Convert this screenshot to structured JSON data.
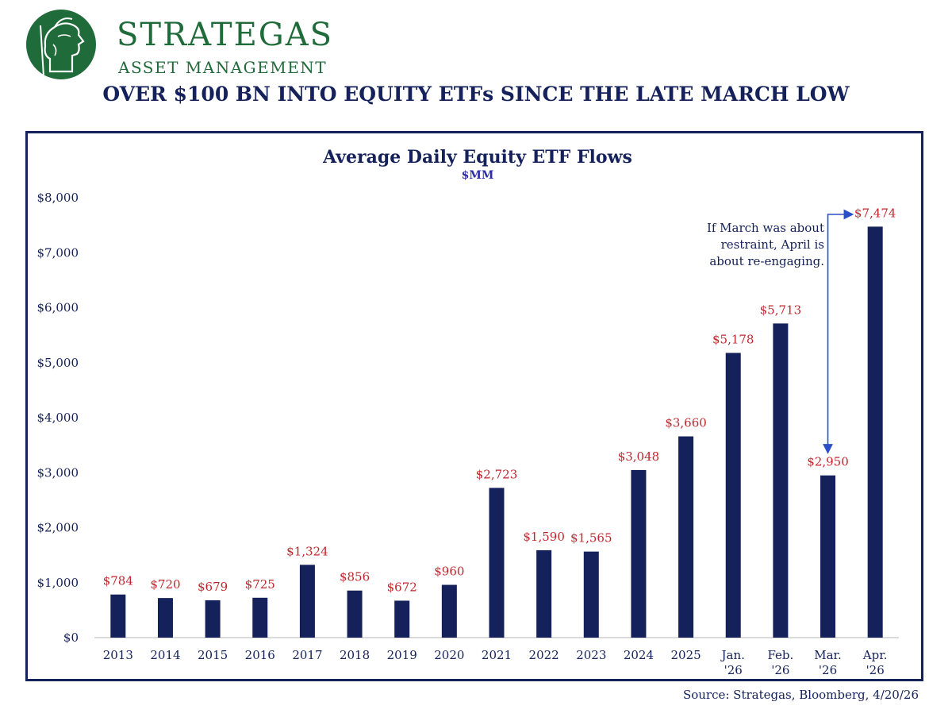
{
  "branding": {
    "name": "STRATEGAS",
    "subtitle": "ASSET MANAGEMENT",
    "logo_icon": "helmeted-profile-logo",
    "brand_color": "#1f6b3a"
  },
  "headline": "OVER $100 BN INTO EQUITY ETFs SINCE THE LATE MARCH LOW",
  "chart_data": {
    "type": "bar",
    "title": "Average Daily Equity ETF Flows",
    "subtitle": "$MM",
    "xlabel": "",
    "ylabel": "",
    "ylim": [
      0,
      8000
    ],
    "yticks": [
      0,
      1000,
      2000,
      3000,
      4000,
      5000,
      6000,
      7000,
      8000
    ],
    "ytick_labels": [
      "$0",
      "$1,000",
      "$2,000",
      "$3,000",
      "$4,000",
      "$5,000",
      "$6,000",
      "$7,000",
      "$8,000"
    ],
    "grid": false,
    "categories": [
      "2013",
      "2014",
      "2015",
      "2016",
      "2017",
      "2018",
      "2019",
      "2020",
      "2021",
      "2022",
      "2023",
      "2024",
      "2025",
      "Jan. '26",
      "Feb. '26",
      "Mar. '26",
      "Apr. '26"
    ],
    "values": [
      784,
      720,
      679,
      725,
      1324,
      856,
      672,
      960,
      2723,
      1590,
      1565,
      3048,
      3660,
      5178,
      5713,
      2950,
      7474
    ],
    "value_labels": [
      "$784",
      "$720",
      "$679",
      "$725",
      "$1,324",
      "$856",
      "$672",
      "$960",
      "$2,723",
      "$1,590",
      "$1,565",
      "$3,048",
      "$3,660",
      "$5,178",
      "$5,713",
      "$2,950",
      "$7,474"
    ],
    "bar_color": "#14215a",
    "label_color": "#c0272d",
    "annotation": {
      "lines": [
        "If March was about",
        "restraint, April is",
        "about re-engaging."
      ],
      "arrow_color": "#2b4fc7"
    }
  },
  "source": "Source: Strategas, Bloomberg, 4/20/26"
}
